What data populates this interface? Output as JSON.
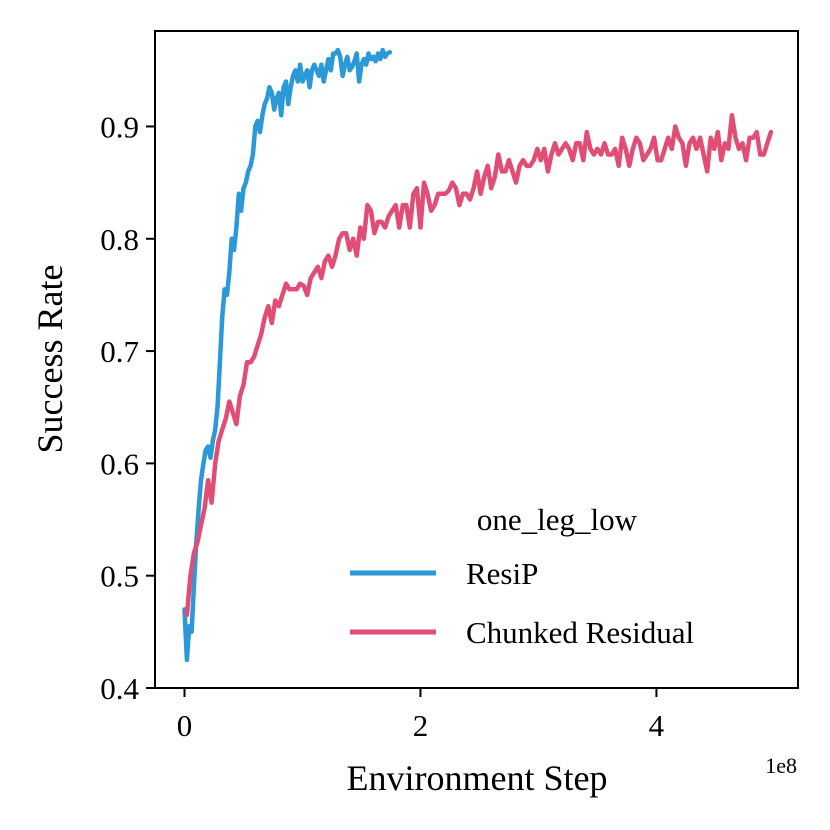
{
  "chart_data": {
    "type": "line",
    "title": "",
    "xlabel": "Environment Step",
    "ylabel": "Success Rate",
    "x_offset_label": "1e8",
    "xlim": [
      -0.25,
      5.2
    ],
    "ylim": [
      0.4,
      0.985
    ],
    "x_ticks": [
      0,
      2,
      4
    ],
    "x_tick_labels": [
      "0",
      "2",
      "4"
    ],
    "y_ticks": [
      0.4,
      0.5,
      0.6,
      0.7,
      0.8,
      0.9
    ],
    "y_tick_labels": [
      "0.4",
      "0.5",
      "0.6",
      "0.7",
      "0.8",
      "0.9"
    ],
    "grid": false,
    "legend": {
      "title": "one_leg_low",
      "position": "lower-right"
    },
    "colors": {
      "ResiP": "#2b98d8",
      "Chunked Residual": "#e24d75"
    },
    "series": [
      {
        "name": "ResiP",
        "x": [
          0.0,
          0.02,
          0.04,
          0.06,
          0.08,
          0.1,
          0.12,
          0.14,
          0.16,
          0.18,
          0.2,
          0.22,
          0.24,
          0.26,
          0.28,
          0.3,
          0.32,
          0.34,
          0.36,
          0.38,
          0.4,
          0.42,
          0.44,
          0.46,
          0.48,
          0.5,
          0.52,
          0.54,
          0.56,
          0.58,
          0.6,
          0.62,
          0.64,
          0.66,
          0.68,
          0.7,
          0.72,
          0.74,
          0.76,
          0.78,
          0.8,
          0.82,
          0.84,
          0.86,
          0.88,
          0.9,
          0.92,
          0.94,
          0.96,
          0.98,
          1.0,
          1.02,
          1.04,
          1.06,
          1.08,
          1.1,
          1.12,
          1.14,
          1.16,
          1.18,
          1.2,
          1.22,
          1.24,
          1.26,
          1.28,
          1.3,
          1.32,
          1.34,
          1.36,
          1.38,
          1.4,
          1.42,
          1.44,
          1.46,
          1.48,
          1.5,
          1.52,
          1.54,
          1.56,
          1.58,
          1.6,
          1.62,
          1.64,
          1.66,
          1.68,
          1.7,
          1.72,
          1.74
        ],
        "values": [
          0.47,
          0.425,
          0.455,
          0.45,
          0.49,
          0.53,
          0.56,
          0.585,
          0.6,
          0.612,
          0.615,
          0.605,
          0.62,
          0.63,
          0.65,
          0.69,
          0.73,
          0.755,
          0.75,
          0.77,
          0.8,
          0.79,
          0.81,
          0.84,
          0.825,
          0.845,
          0.85,
          0.86,
          0.865,
          0.875,
          0.9,
          0.905,
          0.895,
          0.91,
          0.92,
          0.925,
          0.935,
          0.93,
          0.915,
          0.925,
          0.93,
          0.91,
          0.935,
          0.94,
          0.92,
          0.935,
          0.945,
          0.95,
          0.94,
          0.955,
          0.94,
          0.945,
          0.95,
          0.935,
          0.95,
          0.955,
          0.95,
          0.945,
          0.955,
          0.94,
          0.95,
          0.96,
          0.95,
          0.965,
          0.965,
          0.968,
          0.962,
          0.945,
          0.955,
          0.962,
          0.95,
          0.953,
          0.958,
          0.965,
          0.94,
          0.955,
          0.96,
          0.955,
          0.965,
          0.96,
          0.962,
          0.958,
          0.965,
          0.96,
          0.968,
          0.962,
          0.965,
          0.966
        ]
      },
      {
        "name": "Chunked Residual",
        "x": [
          0.02,
          0.05,
          0.08,
          0.11,
          0.14,
          0.17,
          0.2,
          0.23,
          0.26,
          0.29,
          0.32,
          0.35,
          0.38,
          0.41,
          0.44,
          0.47,
          0.5,
          0.53,
          0.56,
          0.59,
          0.62,
          0.65,
          0.68,
          0.71,
          0.74,
          0.77,
          0.8,
          0.83,
          0.86,
          0.89,
          0.92,
          0.95,
          0.98,
          1.01,
          1.04,
          1.07,
          1.1,
          1.13,
          1.16,
          1.19,
          1.22,
          1.25,
          1.28,
          1.31,
          1.34,
          1.37,
          1.4,
          1.43,
          1.46,
          1.49,
          1.52,
          1.55,
          1.58,
          1.61,
          1.64,
          1.67,
          1.7,
          1.73,
          1.76,
          1.79,
          1.82,
          1.85,
          1.88,
          1.91,
          1.94,
          1.97,
          2.0,
          2.03,
          2.06,
          2.09,
          2.12,
          2.15,
          2.18,
          2.21,
          2.24,
          2.27,
          2.3,
          2.33,
          2.36,
          2.39,
          2.42,
          2.45,
          2.48,
          2.51,
          2.54,
          2.57,
          2.6,
          2.63,
          2.66,
          2.69,
          2.72,
          2.75,
          2.78,
          2.81,
          2.84,
          2.87,
          2.9,
          2.93,
          2.96,
          2.99,
          3.02,
          3.05,
          3.08,
          3.11,
          3.14,
          3.17,
          3.2,
          3.23,
          3.26,
          3.29,
          3.32,
          3.35,
          3.38,
          3.41,
          3.44,
          3.47,
          3.5,
          3.53,
          3.56,
          3.59,
          3.62,
          3.65,
          3.68,
          3.71,
          3.74,
          3.77,
          3.8,
          3.83,
          3.86,
          3.89,
          3.92,
          3.95,
          3.98,
          4.01,
          4.04,
          4.07,
          4.1,
          4.13,
          4.16,
          4.19,
          4.22,
          4.25,
          4.28,
          4.31,
          4.34,
          4.37,
          4.4,
          4.43,
          4.46,
          4.49,
          4.52,
          4.55,
          4.58,
          4.61,
          4.64,
          4.67,
          4.7,
          4.73,
          4.76,
          4.79,
          4.82,
          4.85,
          4.88,
          4.91,
          4.94,
          4.97
        ],
        "values": [
          0.465,
          0.5,
          0.52,
          0.53,
          0.545,
          0.56,
          0.585,
          0.565,
          0.6,
          0.62,
          0.63,
          0.64,
          0.655,
          0.645,
          0.635,
          0.66,
          0.67,
          0.69,
          0.69,
          0.695,
          0.705,
          0.715,
          0.73,
          0.74,
          0.725,
          0.745,
          0.74,
          0.75,
          0.76,
          0.755,
          0.755,
          0.755,
          0.76,
          0.758,
          0.75,
          0.765,
          0.77,
          0.775,
          0.765,
          0.78,
          0.785,
          0.775,
          0.785,
          0.8,
          0.805,
          0.805,
          0.79,
          0.8,
          0.785,
          0.81,
          0.8,
          0.83,
          0.825,
          0.805,
          0.815,
          0.815,
          0.81,
          0.82,
          0.825,
          0.83,
          0.81,
          0.83,
          0.83,
          0.81,
          0.84,
          0.845,
          0.81,
          0.85,
          0.84,
          0.825,
          0.83,
          0.84,
          0.84,
          0.84,
          0.843,
          0.85,
          0.845,
          0.83,
          0.84,
          0.84,
          0.835,
          0.845,
          0.86,
          0.84,
          0.855,
          0.865,
          0.845,
          0.855,
          0.875,
          0.86,
          0.86,
          0.87,
          0.86,
          0.85,
          0.865,
          0.87,
          0.865,
          0.865,
          0.87,
          0.88,
          0.87,
          0.88,
          0.86,
          0.875,
          0.885,
          0.875,
          0.88,
          0.885,
          0.88,
          0.87,
          0.885,
          0.885,
          0.87,
          0.895,
          0.88,
          0.875,
          0.88,
          0.875,
          0.885,
          0.875,
          0.875,
          0.88,
          0.865,
          0.89,
          0.88,
          0.865,
          0.88,
          0.89,
          0.885,
          0.87,
          0.875,
          0.88,
          0.89,
          0.87,
          0.87,
          0.88,
          0.89,
          0.88,
          0.9,
          0.89,
          0.885,
          0.865,
          0.885,
          0.89,
          0.88,
          0.89,
          0.875,
          0.86,
          0.89,
          0.88,
          0.895,
          0.87,
          0.885,
          0.88,
          0.91,
          0.89,
          0.88,
          0.885,
          0.87,
          0.89,
          0.89,
          0.895,
          0.875,
          0.875,
          0.885,
          0.895
        ]
      }
    ]
  }
}
